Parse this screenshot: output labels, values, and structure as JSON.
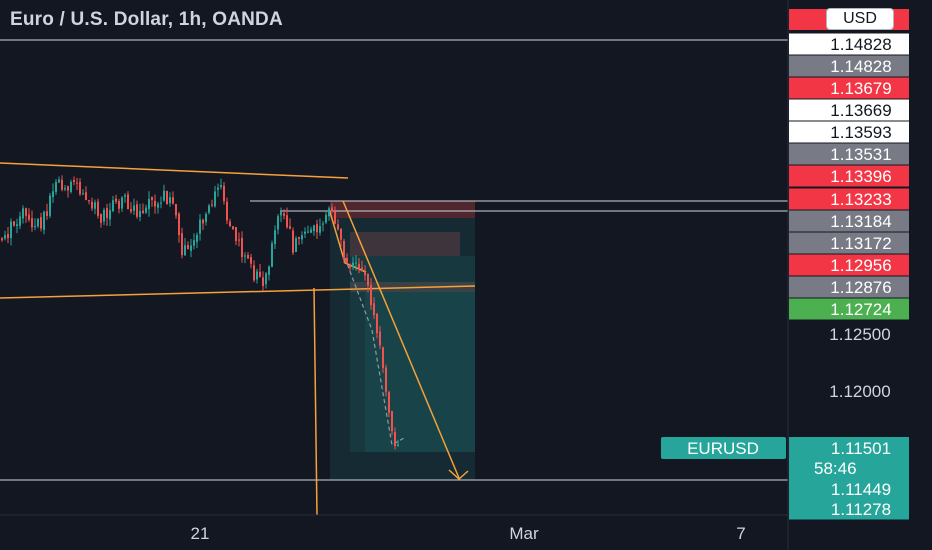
{
  "chart_title": "Euro / U.S. Dollar, 1h, OANDA",
  "currency_selector": "USD",
  "symbol_label": "EURUSD",
  "countdown": "58:46",
  "colors": {
    "background": "#131722",
    "up_candle": "#26a69a",
    "down_candle": "#ef5350",
    "trendline": "#f7a13a",
    "axis_text": "#d1d4dc",
    "badge_red": "#f23645",
    "badge_white": "#ffffff",
    "badge_gray": "#787b86",
    "badge_green": "#4caf50",
    "badge_teal": "#26a69a"
  },
  "chart_data": {
    "type": "candlestick",
    "title": "Euro / U.S. Dollar, 1h, OANDA",
    "symbol": "EURUSD",
    "timeframe": "1h",
    "last_price": "1.11501",
    "y_axis_ticks": [
      "1.12500",
      "1.12000"
    ],
    "x_axis_ticks": [
      "21",
      "Mar",
      "7"
    ],
    "ylim": [
      1.111,
      1.152
    ],
    "price_labels": [
      {
        "text": "1.14828",
        "style": "white"
      },
      {
        "text": "1.14828",
        "style": "gray"
      },
      {
        "text": "1.13679",
        "style": "red"
      },
      {
        "text": "1.13669",
        "style": "white"
      },
      {
        "text": "1.13593",
        "style": "white"
      },
      {
        "text": "1.13531",
        "style": "gray"
      },
      {
        "text": "1.13396",
        "style": "red"
      },
      {
        "text": "1.13233",
        "style": "red"
      },
      {
        "text": "1.13184",
        "style": "gray"
      },
      {
        "text": "1.13172",
        "style": "gray"
      },
      {
        "text": "1.12956",
        "style": "red"
      },
      {
        "text": "1.12876",
        "style": "gray"
      },
      {
        "text": "1.12724",
        "style": "green"
      },
      {
        "text": "1.11449",
        "style": "teal"
      },
      {
        "text": "1.11278",
        "style": "teal"
      }
    ],
    "horizontal_lines": [
      1.14828,
      1.13233,
      1.13184,
      1.11449
    ]
  }
}
